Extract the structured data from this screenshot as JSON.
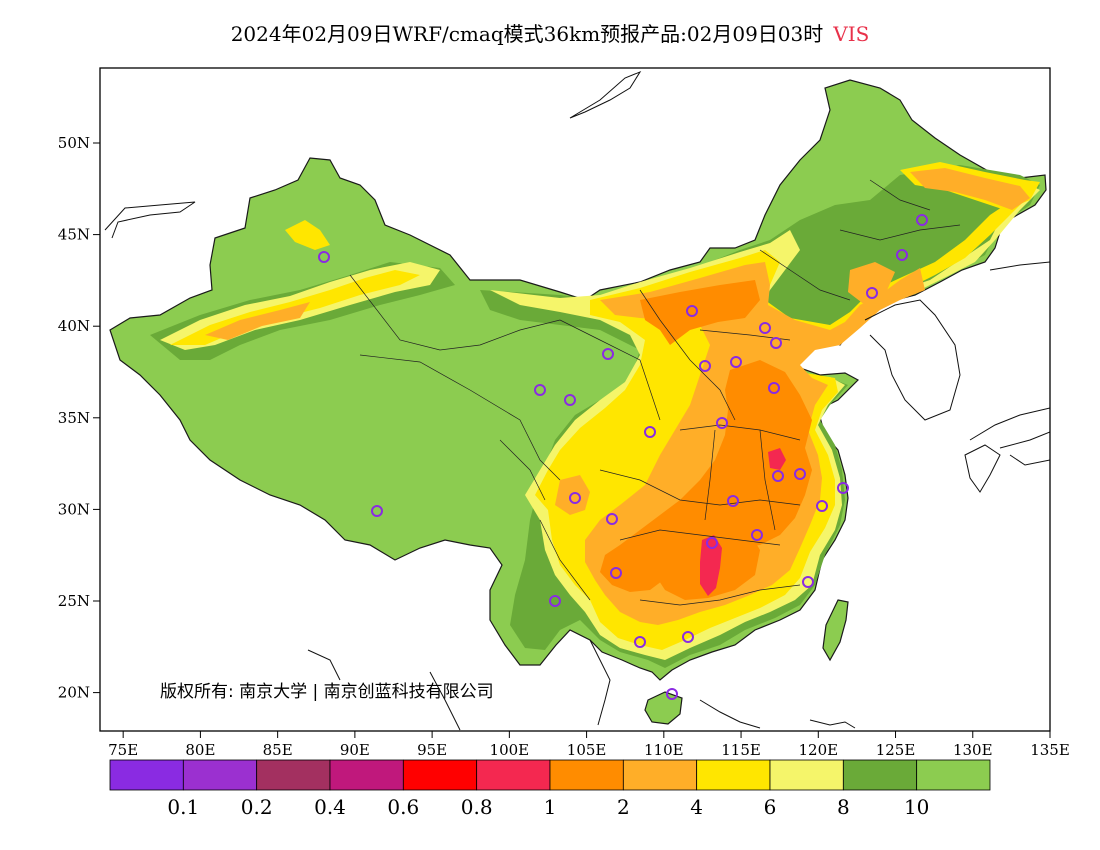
{
  "title": {
    "text": "2024年02月09日WRF/cmaq模式36km预报产品:02月09日03时",
    "variable": "VIS"
  },
  "axes": {
    "lon_ticks": [
      "75E",
      "80E",
      "85E",
      "90E",
      "95E",
      "100E",
      "105E",
      "110E",
      "115E",
      "120E",
      "125E",
      "130E",
      "135E"
    ],
    "lat_ticks": [
      "50N",
      "45N",
      "40N",
      "35N",
      "30N",
      "25N",
      "20N"
    ]
  },
  "copyright": "版权所有: 南京大学 | 南京创蓝科技有限公司",
  "colorbar": {
    "colors": [
      "#8a2be2",
      "#9b30d0",
      "#a33060",
      "#c0187c",
      "#ff0000",
      "#f42850",
      "#ff8c00",
      "#ffae28",
      "#ffe600",
      "#f5f56a",
      "#6aaa38",
      "#8ccc50"
    ],
    "labels": [
      "0.1",
      "0.2",
      "0.4",
      "0.6",
      "0.8",
      "1",
      "2",
      "4",
      "6",
      "8",
      "10"
    ]
  },
  "palette": {
    "clear": "#8ccc50",
    "dark_green": "#6aaa38",
    "light_yellow": "#f5f56a",
    "yellow": "#ffe600",
    "light_orange": "#ffae28",
    "orange": "#ff8c00",
    "pink_red": "#f42850",
    "station_ring": "#8a2be2"
  }
}
